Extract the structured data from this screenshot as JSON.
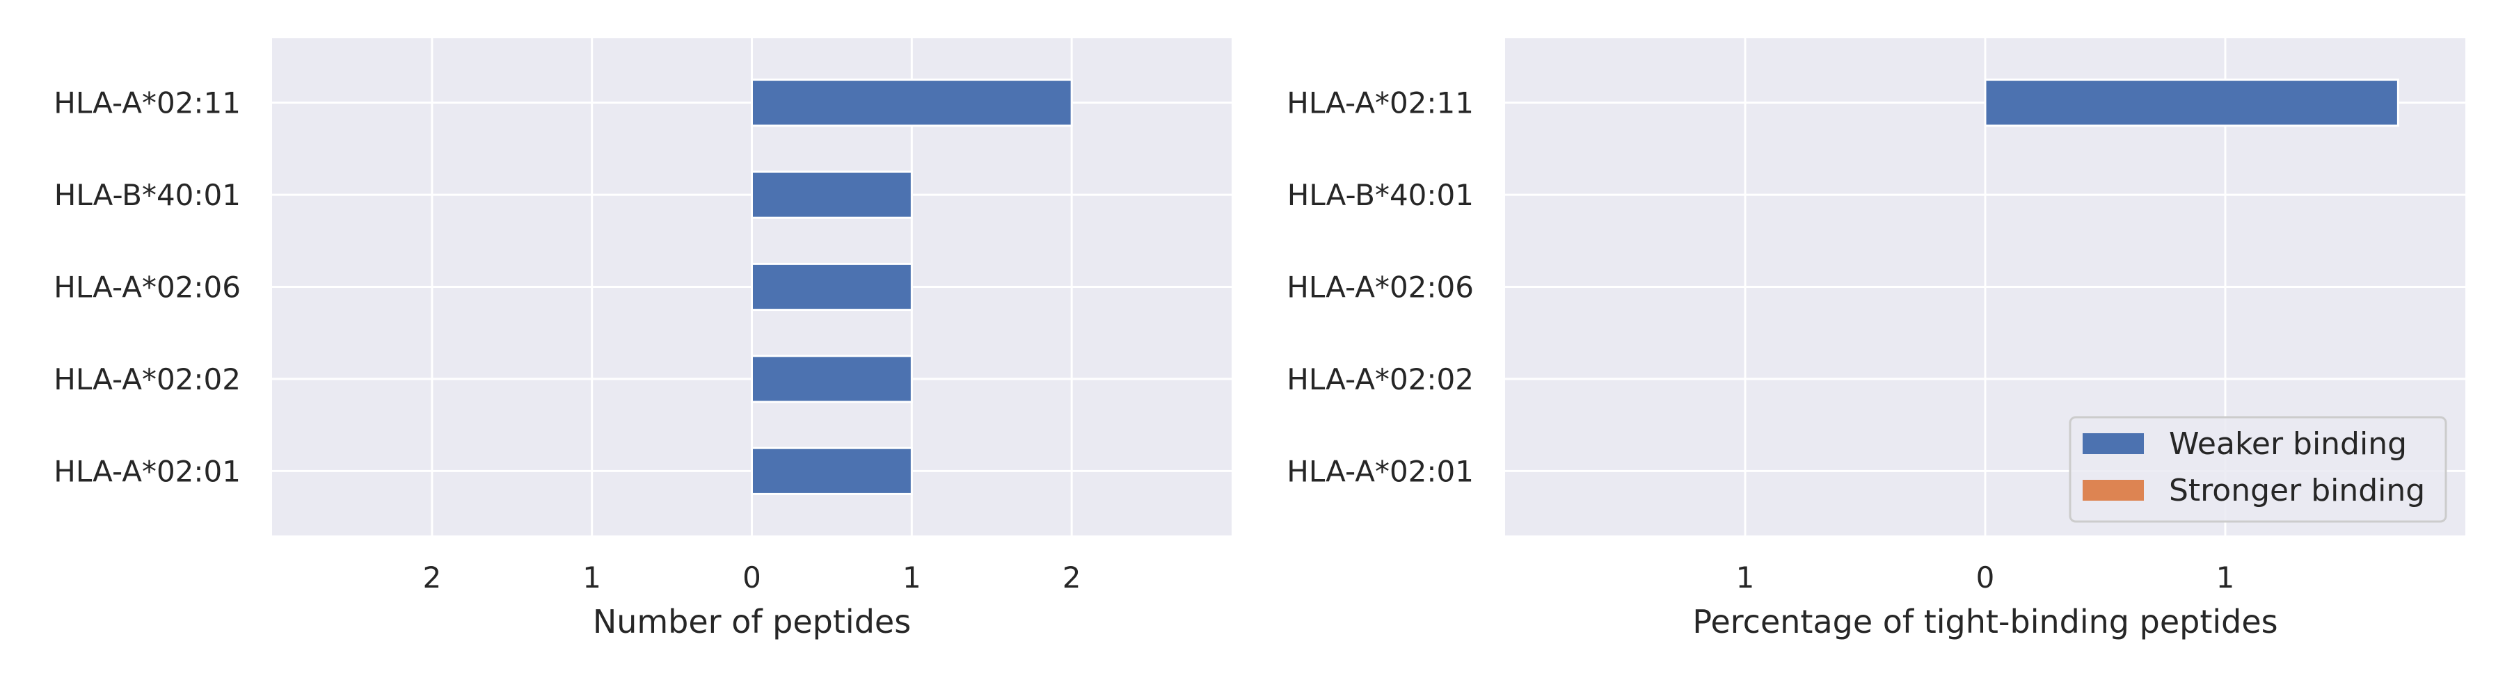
{
  "colors": {
    "weaker": "#4c72b0",
    "stronger": "#dd8452",
    "plot_bg": "#eaeaf2",
    "grid": "#ffffff",
    "text": "#262626"
  },
  "chart_data": [
    {
      "type": "bar",
      "orientation": "horizontal",
      "categories": [
        "HLA-A*02:11",
        "HLA-B*40:01",
        "HLA-A*02:06",
        "HLA-A*02:02",
        "HLA-A*02:01"
      ],
      "series": [
        {
          "name": "Weaker binding",
          "values": [
            2,
            1,
            1,
            1,
            1
          ]
        },
        {
          "name": "Stronger binding",
          "values": [
            0,
            0,
            0,
            0,
            0
          ]
        }
      ],
      "xlabel": "Number of peptides",
      "xlim": [
        -3,
        3
      ],
      "xticks": [
        -2,
        -1,
        0,
        1,
        2
      ],
      "xtick_labels": [
        "2",
        "1",
        "0",
        "1",
        "2"
      ],
      "grid": true
    },
    {
      "type": "bar",
      "orientation": "horizontal",
      "categories": [
        "HLA-A*02:11",
        "HLA-B*40:01",
        "HLA-A*02:06",
        "HLA-A*02:02",
        "HLA-A*02:01"
      ],
      "series": [
        {
          "name": "Weaker binding",
          "values": [
            1.72,
            0,
            0,
            0,
            0
          ]
        },
        {
          "name": "Stronger binding",
          "values": [
            0,
            0,
            0,
            0,
            0
          ]
        }
      ],
      "xlabel": "Percentage of tight-binding peptides",
      "xlim": [
        -2,
        2
      ],
      "xticks": [
        -1,
        0,
        1
      ],
      "xtick_labels": [
        "1",
        "0",
        "1"
      ],
      "grid": true,
      "legend": {
        "position": "lower-right",
        "entries": [
          "Weaker binding",
          "Stronger binding"
        ]
      }
    }
  ]
}
